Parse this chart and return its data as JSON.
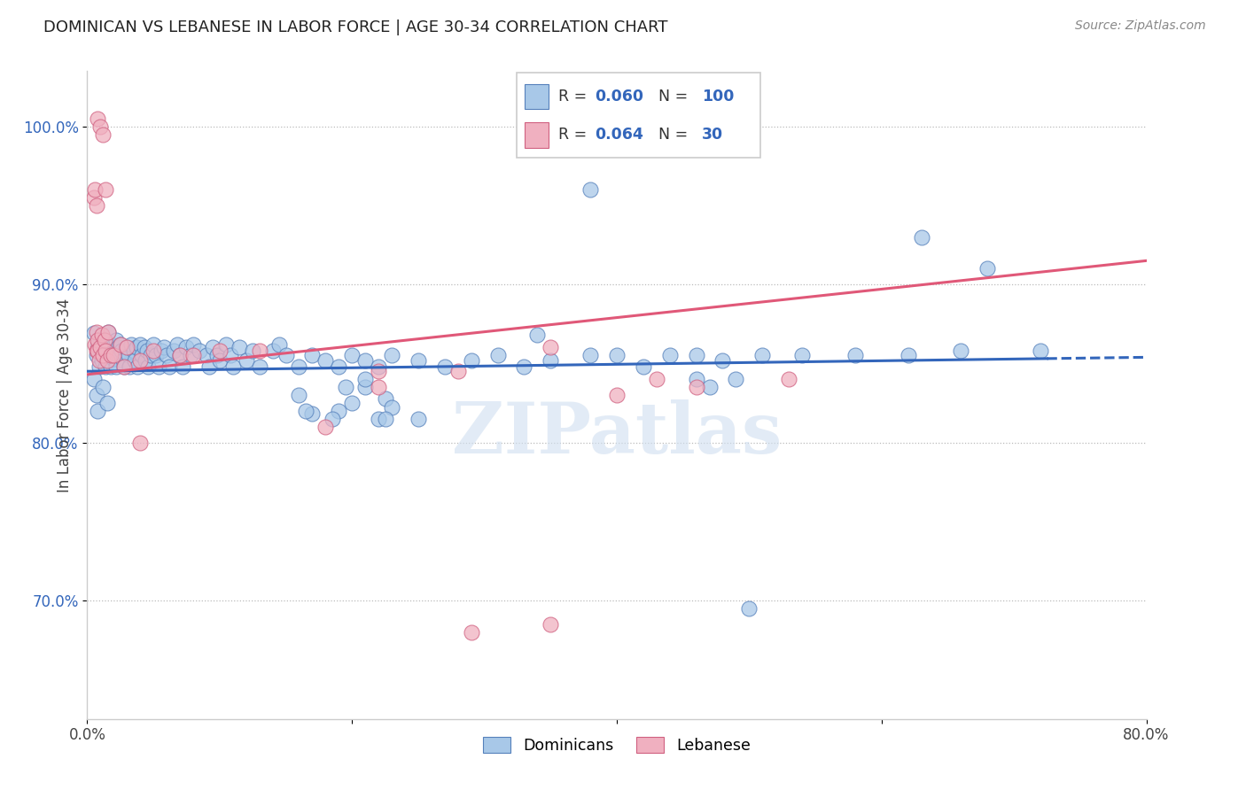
{
  "title": "DOMINICAN VS LEBANESE IN LABOR FORCE | AGE 30-34 CORRELATION CHART",
  "source": "Source: ZipAtlas.com",
  "ylabel": "In Labor Force | Age 30-34",
  "xmin": 0.0,
  "xmax": 0.8,
  "ymin": 0.625,
  "ymax": 1.035,
  "yticks": [
    0.7,
    0.8,
    0.9,
    1.0
  ],
  "ytick_labels": [
    "70.0%",
    "80.0%",
    "90.0%",
    "100.0%"
  ],
  "xticks": [
    0.0,
    0.2,
    0.4,
    0.6,
    0.8
  ],
  "xtick_labels": [
    "0.0%",
    "",
    "",
    "",
    "80.0%"
  ],
  "r_blue": 0.06,
  "n_blue": 100,
  "r_pink": 0.064,
  "n_pink": 30,
  "blue_fill": "#A8C8E8",
  "blue_edge": "#5580BB",
  "pink_fill": "#F0B0C0",
  "pink_edge": "#D06080",
  "blue_line": "#3366BB",
  "pink_line": "#E05878",
  "legend_label_blue": "Dominicans",
  "legend_label_pink": "Lebanese",
  "watermark": "ZIPatlas",
  "blue_line_solid_end": 0.725,
  "dom_x": [
    0.005,
    0.007,
    0.008,
    0.009,
    0.01,
    0.01,
    0.011,
    0.012,
    0.012,
    0.013,
    0.014,
    0.015,
    0.015,
    0.016,
    0.016,
    0.017,
    0.018,
    0.018,
    0.019,
    0.02,
    0.021,
    0.022,
    0.022,
    0.023,
    0.024,
    0.025,
    0.026,
    0.027,
    0.028,
    0.03,
    0.031,
    0.032,
    0.033,
    0.035,
    0.036,
    0.037,
    0.038,
    0.04,
    0.041,
    0.043,
    0.044,
    0.045,
    0.046,
    0.048,
    0.05,
    0.052,
    0.054,
    0.056,
    0.058,
    0.06,
    0.062,
    0.065,
    0.068,
    0.07,
    0.072,
    0.075,
    0.078,
    0.08,
    0.085,
    0.09,
    0.092,
    0.095,
    0.098,
    0.1,
    0.105,
    0.108,
    0.11,
    0.115,
    0.12,
    0.125,
    0.13,
    0.14,
    0.145,
    0.15,
    0.16,
    0.17,
    0.18,
    0.19,
    0.2,
    0.21,
    0.22,
    0.23,
    0.25,
    0.27,
    0.29,
    0.31,
    0.33,
    0.35,
    0.38,
    0.4,
    0.42,
    0.44,
    0.46,
    0.48,
    0.51,
    0.54,
    0.58,
    0.62,
    0.66,
    0.72
  ],
  "dom_y": [
    0.869,
    0.855,
    0.862,
    0.848,
    0.858,
    0.864,
    0.852,
    0.857,
    0.862,
    0.855,
    0.848,
    0.863,
    0.858,
    0.87,
    0.852,
    0.855,
    0.862,
    0.848,
    0.86,
    0.853,
    0.857,
    0.865,
    0.848,
    0.86,
    0.855,
    0.862,
    0.858,
    0.852,
    0.848,
    0.86,
    0.855,
    0.848,
    0.862,
    0.858,
    0.852,
    0.86,
    0.848,
    0.862,
    0.855,
    0.86,
    0.852,
    0.858,
    0.848,
    0.855,
    0.862,
    0.855,
    0.848,
    0.858,
    0.86,
    0.855,
    0.848,
    0.858,
    0.862,
    0.855,
    0.848,
    0.86,
    0.855,
    0.862,
    0.858,
    0.855,
    0.848,
    0.86,
    0.855,
    0.852,
    0.862,
    0.855,
    0.848,
    0.86,
    0.852,
    0.858,
    0.848,
    0.858,
    0.862,
    0.855,
    0.848,
    0.855,
    0.852,
    0.848,
    0.855,
    0.852,
    0.848,
    0.855,
    0.852,
    0.848,
    0.852,
    0.855,
    0.848,
    0.852,
    0.855,
    0.855,
    0.848,
    0.855,
    0.855,
    0.852,
    0.855,
    0.855,
    0.855,
    0.855,
    0.858,
    0.858
  ],
  "dom_outliers_x": [
    0.005,
    0.007,
    0.008,
    0.012,
    0.015,
    0.34,
    0.46,
    0.47,
    0.5,
    0.49,
    0.21,
    0.225,
    0.195,
    0.17,
    0.16,
    0.22,
    0.23,
    0.25,
    0.19,
    0.2,
    0.225,
    0.165,
    0.185,
    0.63,
    0.68,
    0.38,
    0.21
  ],
  "dom_outliers_y": [
    0.84,
    0.83,
    0.82,
    0.835,
    0.825,
    0.868,
    0.84,
    0.835,
    0.695,
    0.84,
    0.835,
    0.828,
    0.835,
    0.818,
    0.83,
    0.815,
    0.822,
    0.815,
    0.82,
    0.825,
    0.815,
    0.82,
    0.815,
    0.93,
    0.91,
    0.96,
    0.84
  ],
  "leb_x": [
    0.006,
    0.007,
    0.007,
    0.008,
    0.008,
    0.009,
    0.01,
    0.011,
    0.012,
    0.013,
    0.014,
    0.015,
    0.016,
    0.018,
    0.02,
    0.025,
    0.028,
    0.03,
    0.04,
    0.05,
    0.07,
    0.08,
    0.1,
    0.13,
    0.22,
    0.28,
    0.35,
    0.43,
    0.46,
    0.53
  ],
  "leb_y": [
    0.862,
    0.87,
    0.858,
    0.865,
    0.858,
    0.852,
    0.86,
    0.868,
    0.855,
    0.865,
    0.858,
    0.852,
    0.87,
    0.855,
    0.855,
    0.862,
    0.848,
    0.86,
    0.852,
    0.858,
    0.855,
    0.855,
    0.858,
    0.858,
    0.845,
    0.845,
    0.86,
    0.84,
    0.835,
    0.84
  ],
  "leb_outliers_x": [
    0.005,
    0.006,
    0.007,
    0.008,
    0.01,
    0.012,
    0.014,
    0.22,
    0.29,
    0.4,
    0.04,
    0.18,
    0.35
  ],
  "leb_outliers_y": [
    0.955,
    0.96,
    0.95,
    1.005,
    1.0,
    0.995,
    0.96,
    0.835,
    0.68,
    0.83,
    0.8,
    0.81,
    0.685
  ]
}
